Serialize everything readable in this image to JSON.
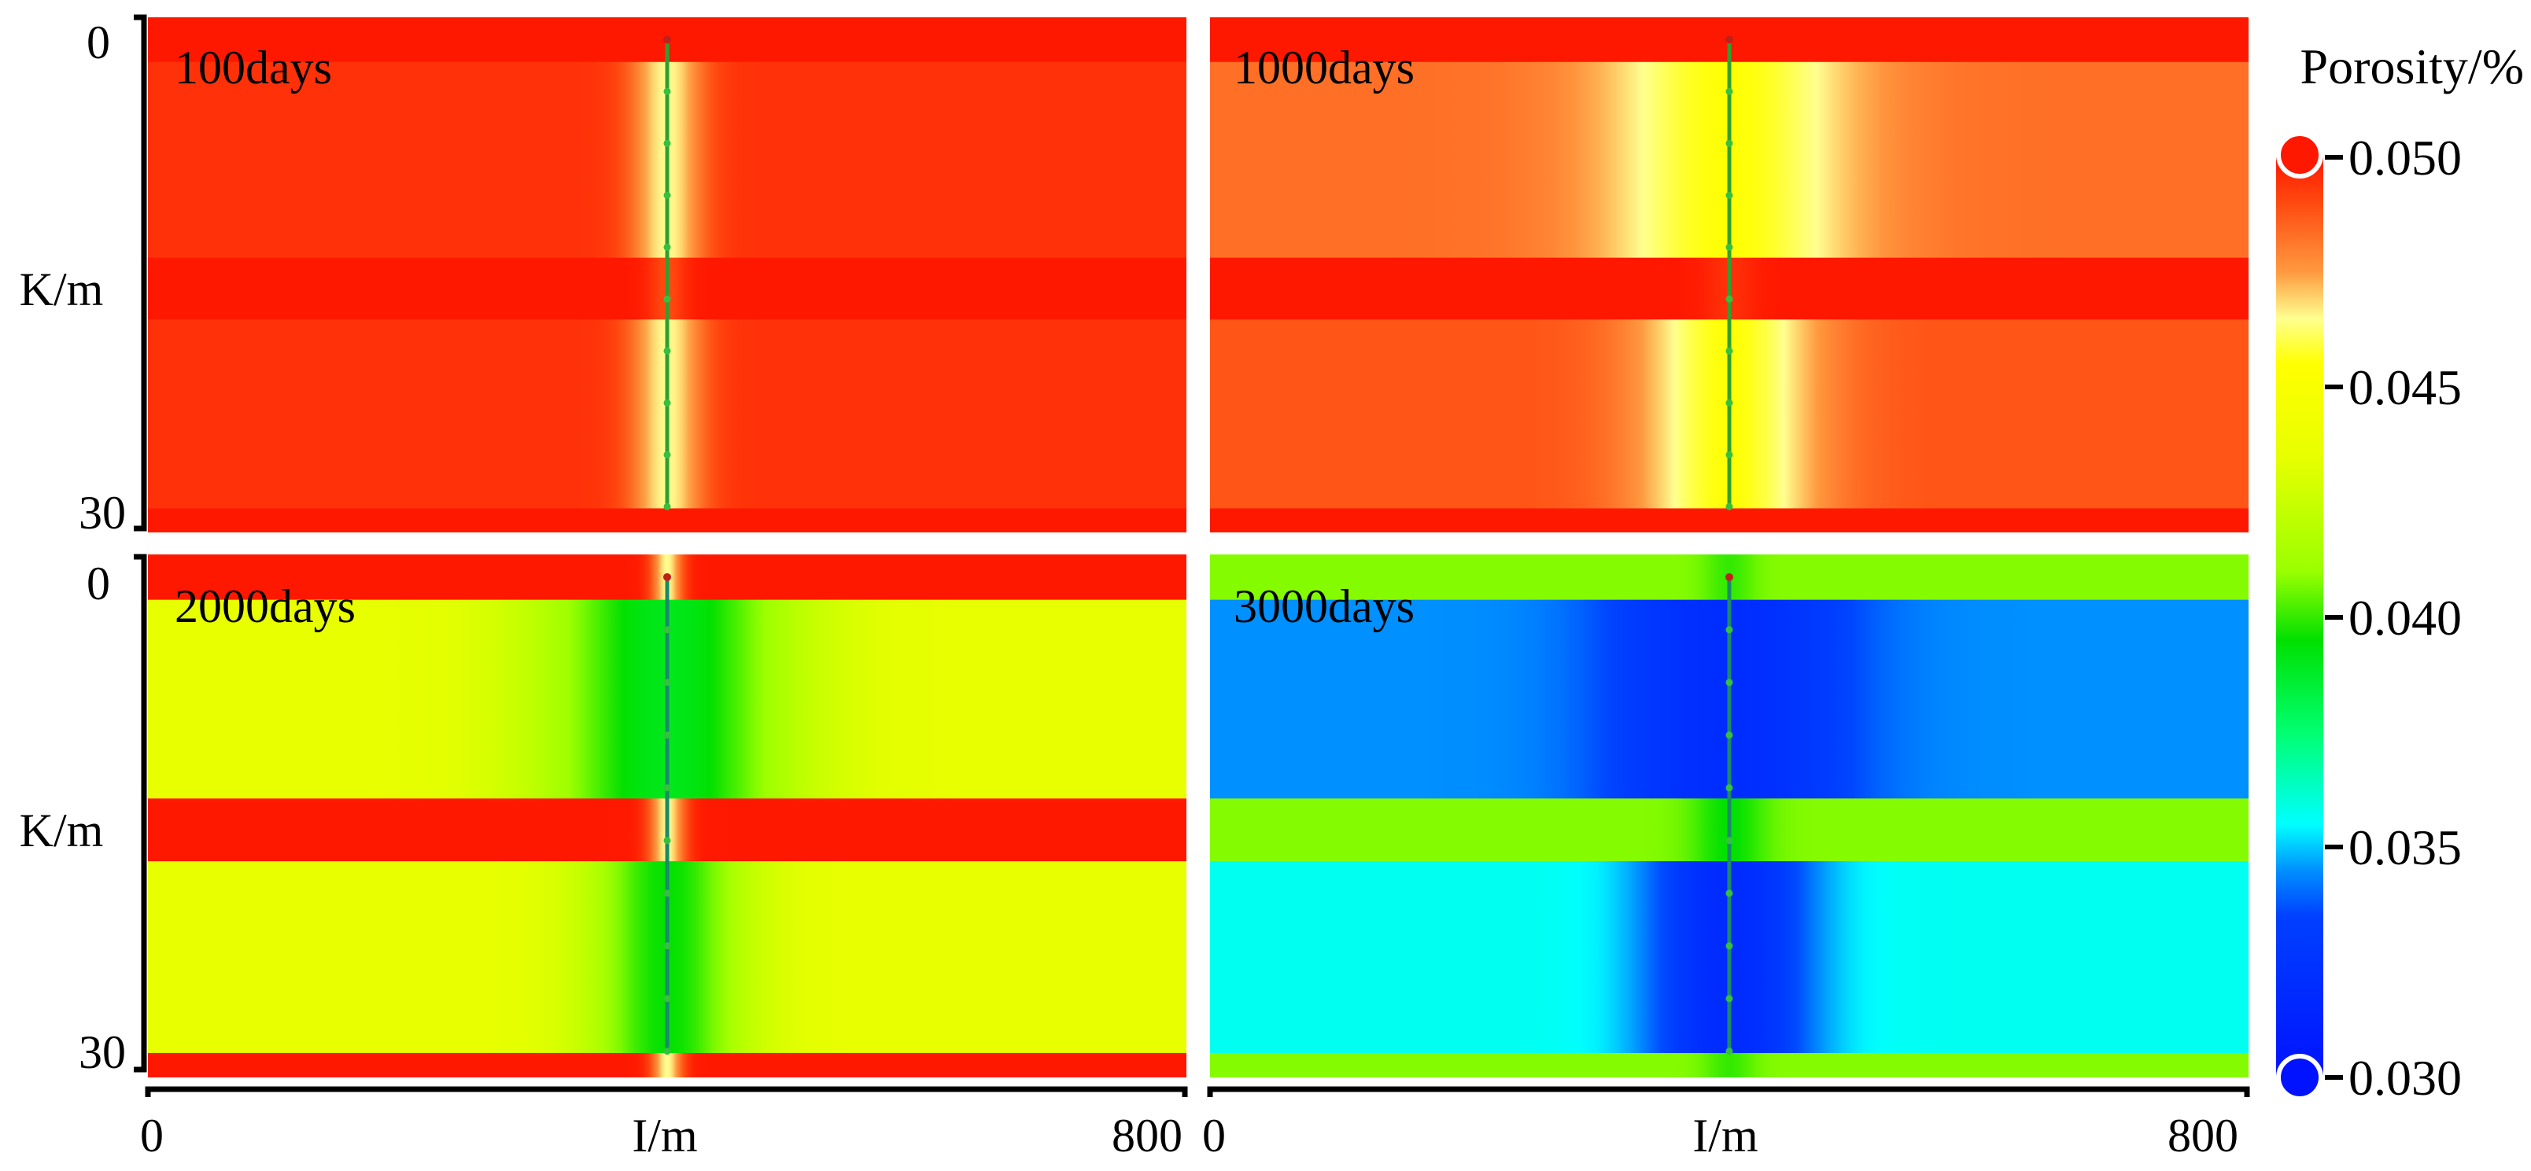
{
  "chart_data": {
    "type": "heatmap",
    "colormap": {
      "title": "Porosity/%",
      "tick_labels": [
        "0.050",
        "0.045",
        "0.040",
        "0.035",
        "0.030"
      ],
      "range": [
        0.03,
        0.05
      ],
      "stops": [
        {
          "value": 0.03,
          "color": "#0012ff"
        },
        {
          "value": 0.0335,
          "color": "#0040ff"
        },
        {
          "value": 0.0345,
          "color": "#0090ff"
        },
        {
          "value": 0.0355,
          "color": "#00ffff"
        },
        {
          "value": 0.0375,
          "color": "#00ff70"
        },
        {
          "value": 0.0395,
          "color": "#00e000"
        },
        {
          "value": 0.041,
          "color": "#9aff00"
        },
        {
          "value": 0.0435,
          "color": "#e8ff00"
        },
        {
          "value": 0.0455,
          "color": "#ffff00"
        },
        {
          "value": 0.0465,
          "color": "#ffff90"
        },
        {
          "value": 0.0475,
          "color": "#ff9a40"
        },
        {
          "value": 0.049,
          "color": "#ff4a10"
        },
        {
          "value": 0.05,
          "color": "#ff1800"
        }
      ]
    },
    "i_axis": {
      "label": "I/m",
      "min": 0,
      "max": 800,
      "tick_labels": [
        "0",
        "800"
      ]
    },
    "k_axis": {
      "label": "K/m",
      "min": 0,
      "max": 30,
      "tick_labels": [
        "0",
        "30"
      ]
    },
    "well_i": 400,
    "well_k_range": [
      1.3,
      28.5
    ],
    "panels": [
      {
        "title": "100days",
        "layers": [
          {
            "k0": 0,
            "k1": 2.6,
            "base": 0.05,
            "well_value": 0.05,
            "halfwidth": 15
          },
          {
            "k0": 2.6,
            "k1": 14,
            "base": 0.0495,
            "well_value": 0.0465,
            "halfwidth": 28
          },
          {
            "k0": 14,
            "k1": 17.6,
            "base": 0.05,
            "well_value": 0.049,
            "halfwidth": 15
          },
          {
            "k0": 17.6,
            "k1": 28.6,
            "base": 0.0495,
            "well_value": 0.0465,
            "halfwidth": 28
          },
          {
            "k0": 28.6,
            "k1": 30,
            "base": 0.05,
            "well_value": 0.05,
            "halfwidth": 15
          }
        ]
      },
      {
        "title": "1000days",
        "layers": [
          {
            "k0": 0,
            "k1": 2.6,
            "base": 0.05,
            "well_value": 0.05,
            "halfwidth": 15
          },
          {
            "k0": 2.6,
            "k1": 14,
            "base": 0.0483,
            "well_value": 0.0455,
            "halfwidth": 100
          },
          {
            "k0": 14,
            "k1": 17.6,
            "base": 0.05,
            "well_value": 0.0495,
            "halfwidth": 20
          },
          {
            "k0": 17.6,
            "k1": 28.6,
            "base": 0.0488,
            "well_value": 0.0455,
            "halfwidth": 70
          },
          {
            "k0": 28.6,
            "k1": 30,
            "base": 0.05,
            "well_value": 0.05,
            "halfwidth": 15
          }
        ]
      },
      {
        "title": "2000days",
        "layers": [
          {
            "k0": 0,
            "k1": 2.6,
            "base": 0.05,
            "well_value": 0.0465,
            "halfwidth": 12
          },
          {
            "k0": 2.6,
            "k1": 14,
            "base": 0.0435,
            "well_value": 0.039,
            "halfwidth": 95
          },
          {
            "k0": 14,
            "k1": 17.6,
            "base": 0.05,
            "well_value": 0.0465,
            "halfwidth": 14
          },
          {
            "k0": 17.6,
            "k1": 28.6,
            "base": 0.0435,
            "well_value": 0.0395,
            "halfwidth": 60
          },
          {
            "k0": 28.6,
            "k1": 30,
            "base": 0.05,
            "well_value": 0.0465,
            "halfwidth": 12
          }
        ]
      },
      {
        "title": "3000days",
        "layers": [
          {
            "k0": 0,
            "k1": 2.6,
            "base": 0.0408,
            "well_value": 0.04,
            "halfwidth": 20
          },
          {
            "k0": 2.6,
            "k1": 14,
            "base": 0.0345,
            "well_value": 0.032,
            "halfwidth": 95
          },
          {
            "k0": 14,
            "k1": 17.6,
            "base": 0.0408,
            "well_value": 0.0395,
            "halfwidth": 30
          },
          {
            "k0": 17.6,
            "k1": 28.6,
            "base": 0.0357,
            "well_value": 0.0318,
            "halfwidth": 65
          },
          {
            "k0": 28.6,
            "k1": 30,
            "base": 0.0408,
            "well_value": 0.04,
            "halfwidth": 20
          }
        ]
      }
    ]
  }
}
